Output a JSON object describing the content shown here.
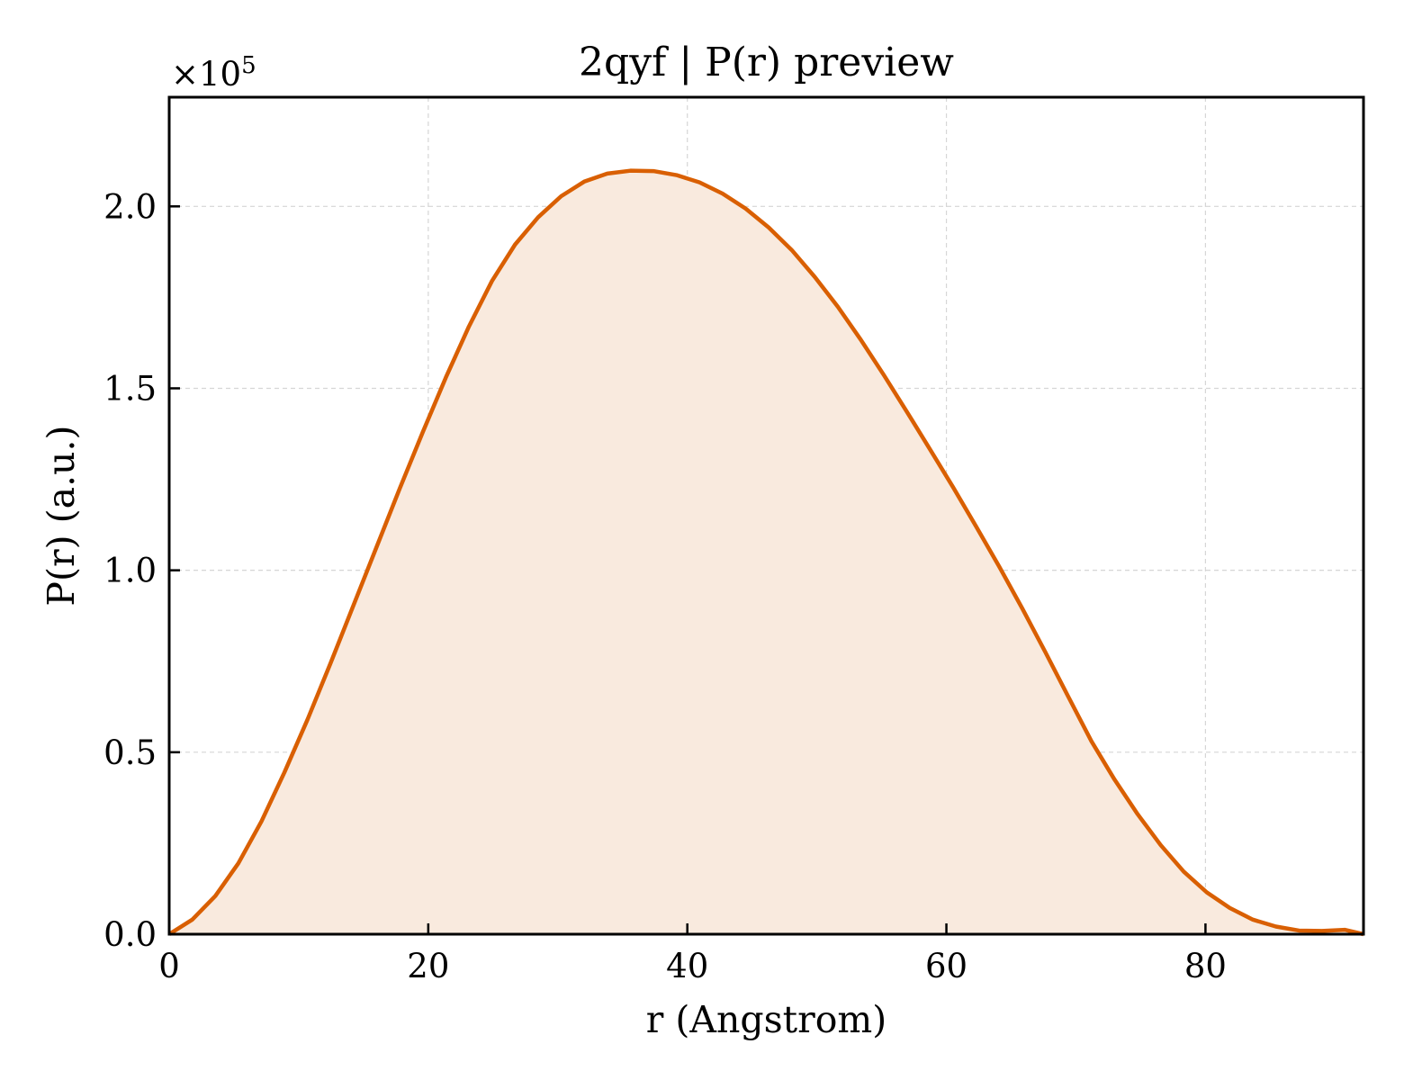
{
  "chart_data": {
    "type": "area",
    "title": "2qyf | P(r) preview",
    "xlabel": "r (Angstrom)",
    "ylabel": "P(r) (a.u.)",
    "y_offset_text": "×10",
    "y_offset_exponent": "5",
    "xlim": [
      0,
      92.2
    ],
    "ylim": [
      0,
      2.3
    ],
    "xticks": [
      0,
      20,
      40,
      60,
      80
    ],
    "xtick_labels": [
      "0",
      "20",
      "40",
      "60",
      "80"
    ],
    "yticks": [
      0,
      0.5,
      1.0,
      1.5,
      2.0
    ],
    "ytick_labels": [
      "0.0",
      "0.5",
      "1.0",
      "1.5",
      "2.0"
    ],
    "grid": true,
    "legend": "none",
    "line_color": "#d95f02",
    "fill_color": "#f9eade",
    "series": [
      {
        "x": [
          0,
          1.78,
          3.56,
          5.34,
          7.12,
          8.9,
          10.68,
          12.46,
          14.24,
          16.02,
          17.8,
          19.58,
          21.36,
          23.14,
          24.92,
          26.7,
          28.48,
          30.26,
          32.04,
          33.82,
          35.6,
          37.38,
          39.16,
          40.94,
          42.72,
          44.5,
          46.28,
          48.06,
          49.84,
          51.62,
          53.4,
          55.18,
          56.96,
          58.74,
          60.52,
          62.3,
          64.08,
          65.86,
          67.64,
          69.42,
          71.2,
          72.98,
          74.76,
          76.54,
          78.32,
          80.1,
          81.88,
          83.66,
          85.44,
          87.22,
          89.0,
          90.78,
          92.2
        ],
        "y": [
          0.0,
          0.04,
          0.105,
          0.195,
          0.31,
          0.445,
          0.59,
          0.745,
          0.905,
          1.065,
          1.225,
          1.38,
          1.53,
          1.67,
          1.795,
          1.895,
          1.97,
          2.028,
          2.068,
          2.09,
          2.098,
          2.097,
          2.086,
          2.066,
          2.035,
          1.994,
          1.942,
          1.88,
          1.806,
          1.724,
          1.633,
          1.536,
          1.435,
          1.332,
          1.228,
          1.12,
          1.01,
          0.895,
          0.775,
          0.652,
          0.53,
          0.425,
          0.33,
          0.245,
          0.172,
          0.115,
          0.072,
          0.04,
          0.021,
          0.01,
          0.009,
          0.012,
          0.0
        ]
      }
    ]
  }
}
